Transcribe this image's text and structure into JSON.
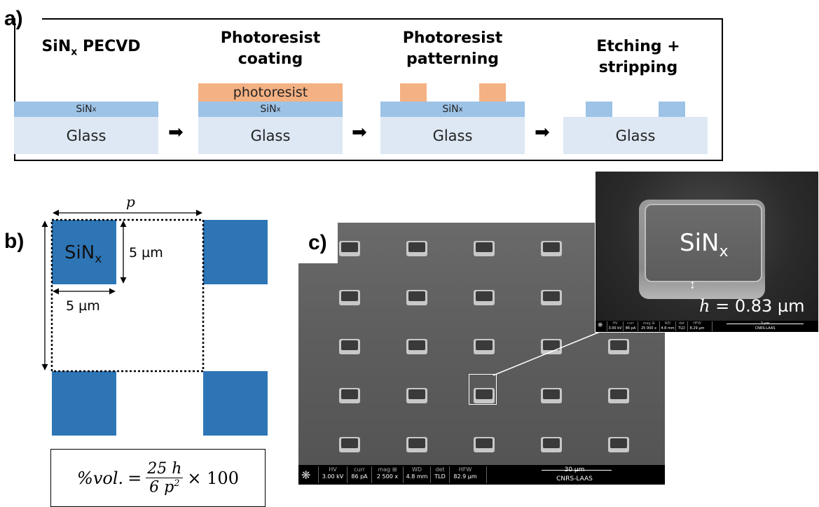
{
  "panel_a": {
    "label": "a)",
    "steps": [
      {
        "title_main": "SiN",
        "title_sub": "x",
        "title_rest": " PECVD"
      },
      {
        "title_line1": "Photoresist",
        "title_line2": "coating"
      },
      {
        "title_line1": "Photoresist",
        "title_line2": "patterning"
      },
      {
        "title_line1": "Etching + stripping"
      }
    ],
    "glass_label": "Glass",
    "sin_label_main": "SiN",
    "sin_label_sub": "x",
    "photoresist_label": "photoresist",
    "arrow_glyph": "➡"
  },
  "panel_b": {
    "label": "b)",
    "p_label": "p",
    "sin_main": "SiN",
    "sin_sub": "x",
    "dim_vertical": "5 µm",
    "dim_horizontal": "5 µm",
    "formula_lhs": "%vol.",
    "formula_eq": "=",
    "formula_num": "25 h",
    "formula_den_a": "6 p",
    "formula_den_exp": "2",
    "formula_times": "× 100"
  },
  "panel_c": {
    "label": "c)",
    "grid_rows": 5,
    "grid_cols": 5,
    "main_bar": {
      "headers": [
        "HV",
        "curr",
        "mag ⊞",
        "WD",
        "det",
        "HFW"
      ],
      "values": [
        "3.00 kV",
        "86 pA",
        "2 500 x",
        "4.8 mm",
        "TLD",
        "82.9 µm"
      ],
      "scale": "30 µm",
      "lab": "CNRS-LAAS"
    },
    "inset": {
      "sin_main": "SiN",
      "sin_sub": "x",
      "h_symbol": "h",
      "h_value": " = 0.83 µm",
      "bar": {
        "headers": [
          "HV",
          "curr",
          "mag ⊞",
          "WD",
          "det",
          "HFW"
        ],
        "values": [
          "3.00 kV",
          "86 pA",
          "25 000 x",
          "4.8 mm",
          "TLD",
          "8.29 µm"
        ],
        "scale": "3 µm",
        "lab": "CNRS-LAAS"
      }
    }
  },
  "colors": {
    "glass": "#dde8f4",
    "sin": "#9dc3e6",
    "photoresist": "#f4b183",
    "sin_square": "#2e75b6"
  }
}
